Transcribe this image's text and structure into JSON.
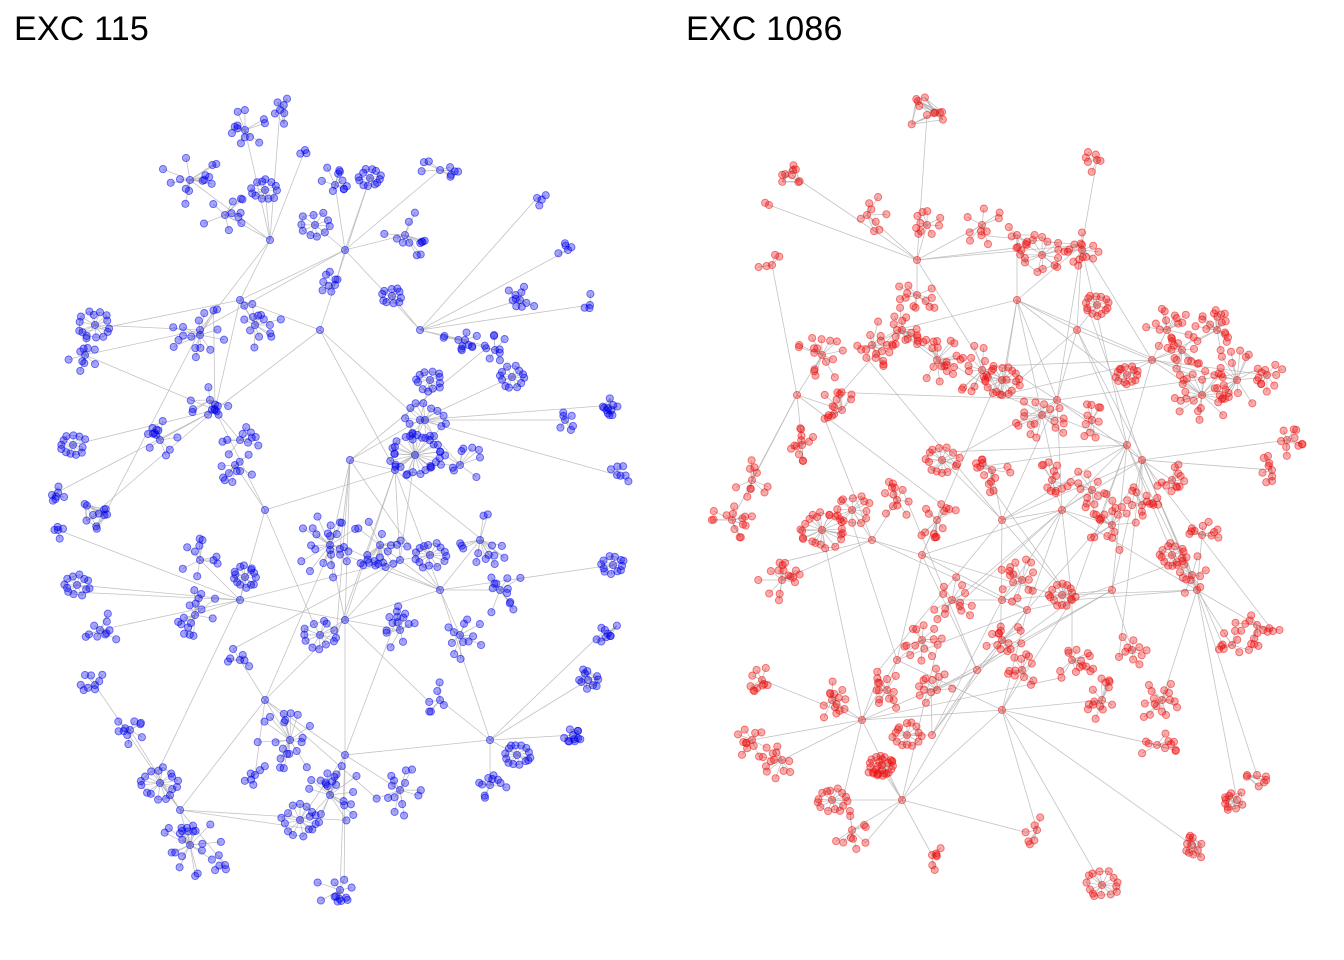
{
  "panels": [
    {
      "id": "left",
      "title": "EXC 115",
      "node_color": "#0000ee",
      "seed": 115
    },
    {
      "id": "right",
      "title": "EXC 1086",
      "node_color": "#ee1111",
      "seed": 1086
    }
  ],
  "edge_color": "#b4b4b4"
}
